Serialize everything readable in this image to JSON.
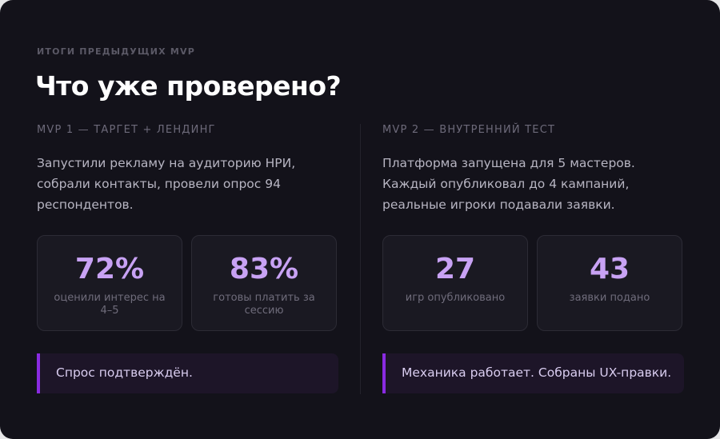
{
  "eyebrow": "ИТОГИ ПРЕДЫДУЩИХ MVP",
  "title": "Что уже проверено?",
  "columns": [
    {
      "heading": "MVP 1 — ТАРГЕТ + ЛЕНДИНГ",
      "text": "Запустили рекламу на аудиторию НРИ, собрали контакты, провели опрос 94 респондентов.",
      "stats": [
        {
          "value": "72%",
          "label": "оценили интерес на 4–5"
        },
        {
          "value": "83%",
          "label": "готовы платить за сессию"
        }
      ],
      "note": "Спрос подтверждён."
    },
    {
      "heading": "MVP 2 — ВНУТРЕННИЙ ТЕСТ",
      "text": "Платформа запущена для 5 мастеров. Каждый опубликовал до 4 кампаний, реальные игроки подавали заявки.",
      "stats": [
        {
          "value": "27",
          "label": "игр опубликовано"
        },
        {
          "value": "43",
          "label": "заявки подано"
        }
      ],
      "note": "Механика работает. Собраны UX-правки."
    }
  ]
}
